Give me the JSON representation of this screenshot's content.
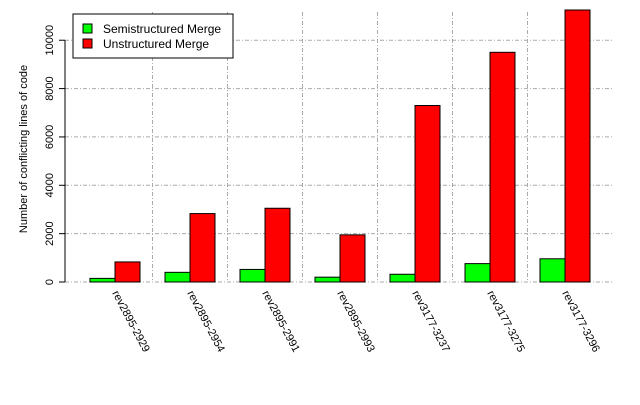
{
  "chart_data": {
    "type": "bar",
    "title": "",
    "xlabel": "",
    "ylabel": "Number of conflicting lines of code",
    "categories": [
      "rev2895-2929",
      "rev2895-2954",
      "rev2895-2991",
      "rev2895-2993",
      "rev3177-3237",
      "rev3177-3275",
      "rev3177-3296"
    ],
    "series": [
      {
        "name": "Semistructured Merge",
        "color": "#00ff00",
        "values": [
          150,
          400,
          520,
          200,
          320,
          760,
          960
        ]
      },
      {
        "name": "Unstructured Merge",
        "color": "#ff0000",
        "values": [
          830,
          2830,
          3050,
          1950,
          7300,
          9500,
          11250
        ]
      }
    ],
    "ylim": [
      0,
      11250
    ],
    "yticks": [
      0,
      2000,
      4000,
      6000,
      8000,
      10000
    ],
    "grid": true,
    "legend_position": "top-left"
  }
}
